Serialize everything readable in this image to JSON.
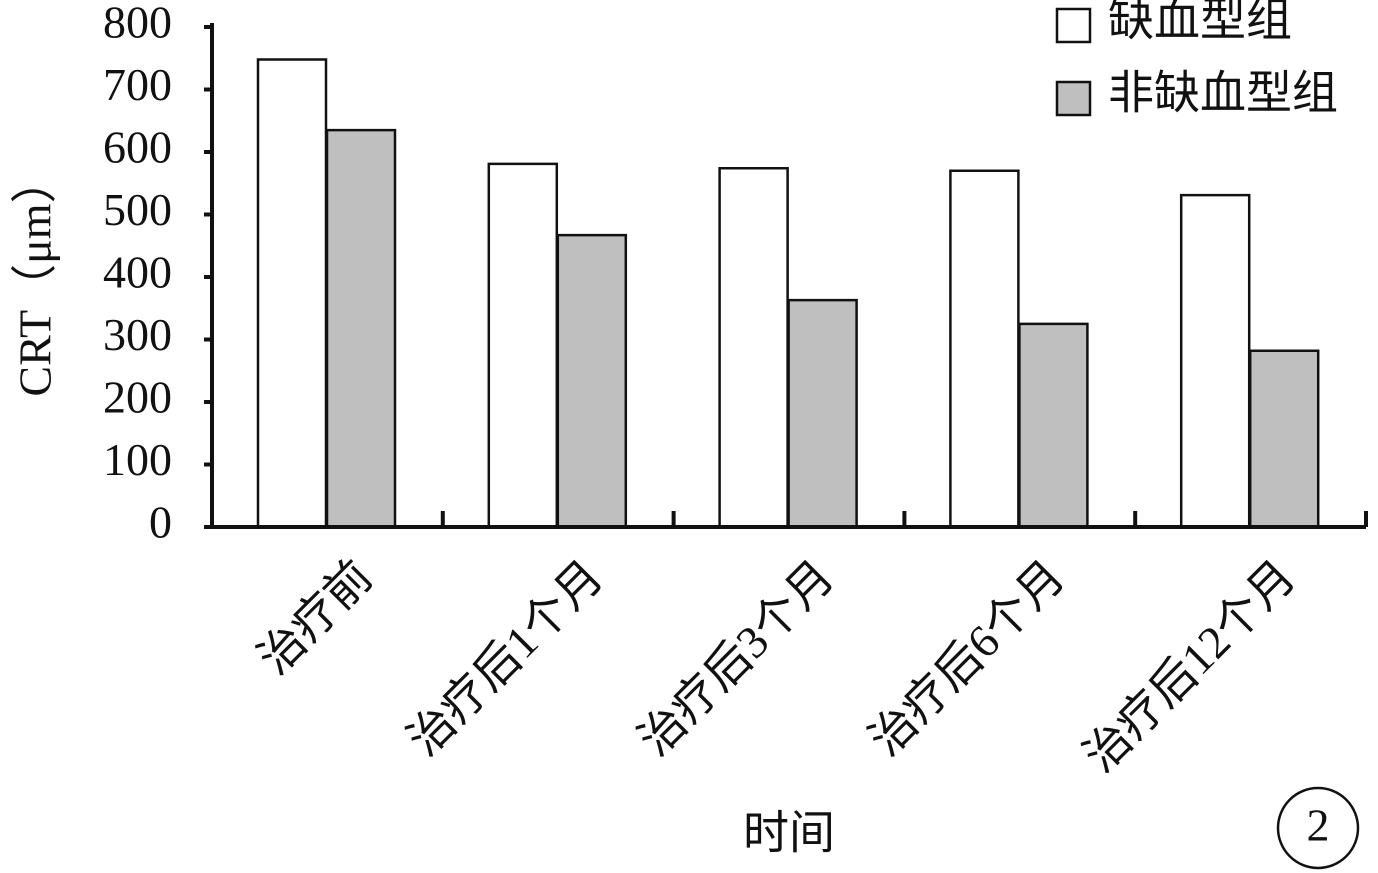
{
  "chart_data": {
    "type": "bar",
    "x_label": "时间",
    "y_label": "CRT（μm）",
    "categories": [
      "治疗前",
      "治疗后1个月",
      "治疗后3个月",
      "治疗后6个月",
      "治疗后12个月"
    ],
    "series": [
      {
        "name": "缺血型组",
        "color": "#ffffff",
        "values": [
          748,
          581,
          574,
          570,
          531
        ]
      },
      {
        "name": "非缺血型组",
        "color": "#bfbfbf",
        "values": [
          635,
          467,
          363,
          325,
          282
        ]
      }
    ],
    "ylim": [
      0,
      800
    ],
    "yticks": [
      0,
      100,
      200,
      300,
      400,
      500,
      600,
      700,
      800
    ],
    "panel_label": "2"
  }
}
